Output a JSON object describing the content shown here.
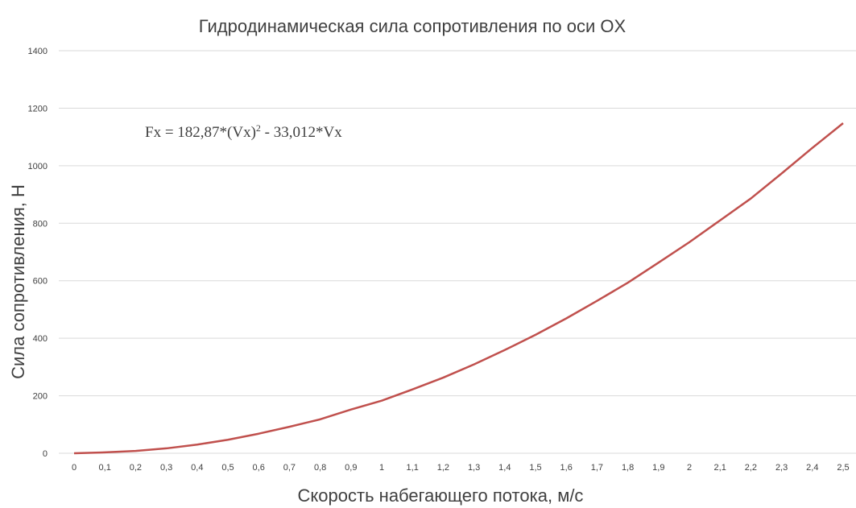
{
  "chart_data": {
    "type": "line",
    "title": "Гидродинамическая сила сопротивления по оси OX",
    "xlabel": "Скорость набегающего потока, м/с",
    "ylabel": "Сила сопротивления, Н",
    "categories": [
      "0",
      "0,1",
      "0,2",
      "0,3",
      "0,4",
      "0,5",
      "0,6",
      "0,7",
      "0,8",
      "0,9",
      "1",
      "1,1",
      "1,2",
      "1,3",
      "1,4",
      "1,5",
      "1,6",
      "1,7",
      "1,8",
      "1,9",
      "2",
      "2,1",
      "2,2",
      "2,3",
      "2,4",
      "2,5"
    ],
    "x": [
      0,
      0.1,
      0.2,
      0.3,
      0.4,
      0.5,
      0.6,
      0.7,
      0.8,
      0.9,
      1.0,
      1.1,
      1.2,
      1.3,
      1.4,
      1.5,
      1.6,
      1.7,
      1.8,
      1.9,
      2.0,
      2.1,
      2.2,
      2.3,
      2.4,
      2.5
    ],
    "series": [
      {
        "values": [
          0,
          3,
          8,
          17,
          30,
          47,
          68,
          92,
          118,
          152,
          183,
          222,
          263,
          309,
          359,
          412,
          469,
          530,
          593,
          663,
          734,
          810,
          886,
          973,
          1062,
          1148
        ],
        "color": "#c0504d"
      }
    ],
    "ylim": [
      0,
      1400
    ],
    "yticks": [
      0,
      200,
      400,
      600,
      800,
      1000,
      1200,
      1400
    ],
    "grid": true,
    "legend": "none",
    "annotation": {
      "text_main": "Fx = 182,87*(Vx)",
      "text_sup": "2",
      "text_tail": " - 33,012*Vx"
    }
  }
}
